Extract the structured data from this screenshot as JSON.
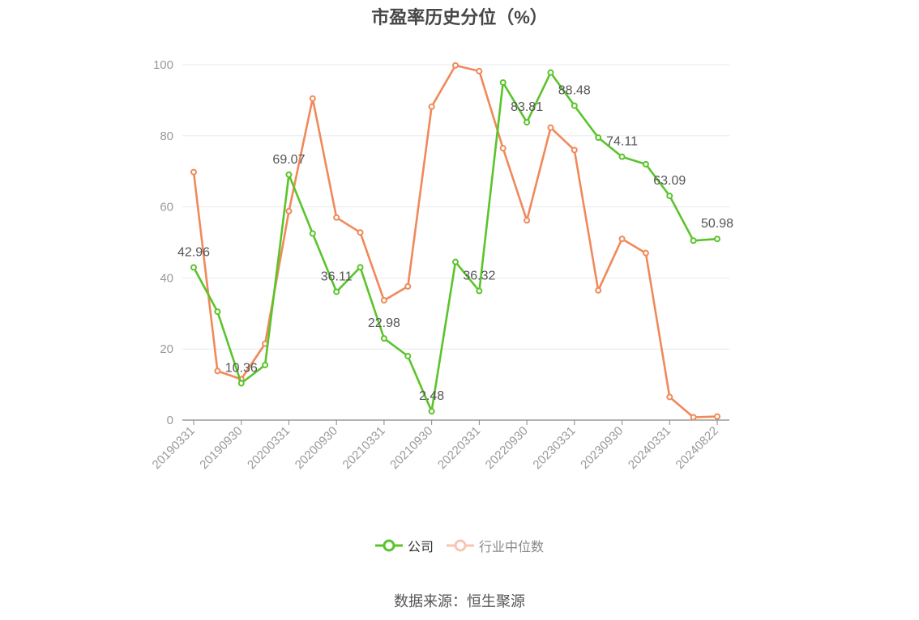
{
  "chart_data": {
    "type": "line",
    "title": "市盈率历史分位（%）",
    "xlabel": "",
    "ylabel": "",
    "ylim": [
      0,
      100
    ],
    "yticks": [
      0,
      20,
      40,
      60,
      80,
      100
    ],
    "grid": true,
    "legend_position": "bottom",
    "x": [
      "20190331",
      "20190630",
      "20190930",
      "20191231",
      "20200331",
      "20200630",
      "20200930",
      "20201231",
      "20210331",
      "20210630",
      "20210930",
      "20211231",
      "20220331",
      "20220630",
      "20220930",
      "20221231",
      "20230331",
      "20230630",
      "20230930",
      "20231231",
      "20240331",
      "20240630",
      "20240822"
    ],
    "xtick_labels": [
      "20190331",
      "20190930",
      "20200331",
      "20200930",
      "20210331",
      "20210930",
      "20220331",
      "20220930",
      "20230331",
      "20230930",
      "20240331",
      "20240822"
    ],
    "series": [
      {
        "name": "公司",
        "color": "#5ac42a",
        "values": [
          42.96,
          30.5,
          10.36,
          15.5,
          69.07,
          52.5,
          36.11,
          43.0,
          22.98,
          18.0,
          2.48,
          44.5,
          36.32,
          95.0,
          83.81,
          97.8,
          88.48,
          79.5,
          74.11,
          72.0,
          63.09,
          50.5,
          50.98
        ],
        "data_labels": [
          {
            "index": 0,
            "text": "42.96"
          },
          {
            "index": 2,
            "text": "10.36"
          },
          {
            "index": 4,
            "text": "69.07"
          },
          {
            "index": 6,
            "text": "36.11"
          },
          {
            "index": 8,
            "text": "22.98"
          },
          {
            "index": 10,
            "text": "2.48"
          },
          {
            "index": 12,
            "text": "36.32"
          },
          {
            "index": 14,
            "text": "83.81"
          },
          {
            "index": 16,
            "text": "88.48"
          },
          {
            "index": 18,
            "text": "74.11"
          },
          {
            "index": 20,
            "text": "63.09"
          },
          {
            "index": 22,
            "text": "50.98"
          }
        ]
      },
      {
        "name": "行业中位数",
        "color": "#f0895a",
        "values": [
          69.8,
          13.8,
          11.5,
          21.5,
          58.8,
          90.5,
          57.0,
          52.8,
          33.7,
          37.6,
          88.2,
          99.8,
          98.2,
          76.5,
          56.2,
          82.3,
          76.0,
          36.5,
          51.0,
          47.0,
          6.5,
          0.8,
          1.0
        ]
      }
    ]
  },
  "source_note": "数据来源：恒生聚源"
}
